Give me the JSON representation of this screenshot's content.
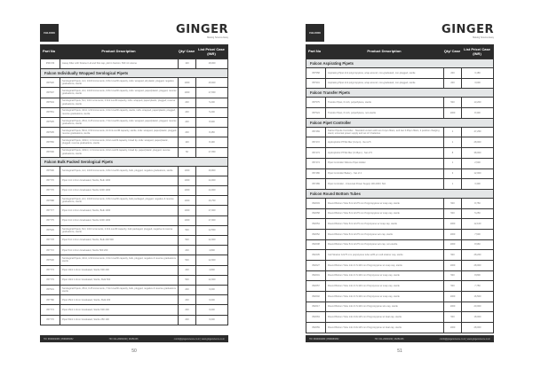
{
  "brand": {
    "logo": "FALCON",
    "name": "GINGER",
    "tagline": "Making Science Easy"
  },
  "headers": {
    "part": "Part No",
    "desc": "Product Description",
    "qty": "Qty/ Case",
    "price": "List Price/ Case (INR)"
  },
  "footer": {
    "phone": "HO: 9820002080 | 9599083052",
    "office": "HO: 011-26260190 | 26251036",
    "web": "ci.info@gingerscience.co.in | www.gingerscience.co.in"
  },
  "pages": [
    {
      "number": "50",
      "rows": [
        {
          "p": "3563 83",
          "d": "Assay Filter with Strainer Lid and Slot cap, pkd in fraction, 500 ml volume",
          "q": "100",
          "v": "18,000"
        },
        {
          "section": "Falcon Individually Wrapped Serological Pipets"
        },
        {
          "p": "357520",
          "d": "Serological Pipets, 1ml, 1/100 increments, 0.8ml overfill capacity, indiv. wrapped, all plastic, plugged, negative graduations, sterile",
          "q": "1000",
          "v": "15,600"
        },
        {
          "p": "357507",
          "d": "Serological Pipets, 2ml, 1/100 increments, 0.8ml overfill capacity, indiv. wrapped, paper/plastic, plugged, reverse graduations, sterile",
          "q": "1000",
          "v": "17,650"
        },
        {
          "p": "357543",
          "d": "Serological Pipets, 5ml, 1/10 increments, 2.0ml overfill capacity, indiv. wrapped, paper/plastic, plugged, reverse graduations, sterile",
          "q": "200",
          "v": "5,200"
        },
        {
          "p": "357551",
          "d": "Serological Pipets, 10ml, 1/10 increments, 3.0ml overfill capacity, sterile, indiv. wrapped, paper/plastic, plugged, reverse graduations, sterile",
          "q": "200",
          "v": "5,200"
        },
        {
          "p": "357525",
          "d": "Serological Pipets, 25ml, 0.25 increments, 7.0ml overfill capacity, indiv. wrapped, paper/plastic, plugged, reverse graduations, sterile",
          "q": "200",
          "v": "8,900"
        },
        {
          "p": "357535",
          "d": "Serological Pipets, 50ml, 0.50 increments, 10.0ml overfill capacity, sterile, indiv. wrapped, paper/plastic, plugged, reverse graduations, sterile",
          "q": "200",
          "v": "8,450"
        },
        {
          "p": "357550",
          "d": "Serological Pipets, 100ml, 1.0 increments, 10ml overfill capacity, broad tip, indiv. wrapped, paper/plastic, plugged, reverse graduations, sterile",
          "q": "100",
          "v": "8,490"
        },
        {
          "p": "357600",
          "d": "Serological Pipets, 100ml, 1.0 increments, 10ml overfill capacity, broad tip, paper/plastic, plugged, reverse graduations, sterile",
          "q": "50",
          "v": "17,050"
        },
        {
          "section": "Falcon Bulk Packed Serological Pipets"
        },
        {
          "p": "357596",
          "d": "Serological Pipets, 1ml, 1/100 increments, 0.8ml overfill capacity, bulk, plugged, negative graduations, sterile",
          "q": "1000",
          "v": "16,800"
        },
        {
          "p": "357776",
          "d": "Pipet 1ml 1.0mm Graduated, Sterile, Bulk 1000",
          "q": "1000",
          "v": "14,000"
        },
        {
          "p": "357776",
          "d": "Pipet 1ml 1.0mm Graduated, Sterile 1000 1000",
          "q": "1000",
          "v": "14,000"
        },
        {
          "p": "357588",
          "d": "Serological Pipets, 2ml, 1/100 increments, 0.8ml overfill capacity, bulk packaged, plugged, negative & reverse graduations, sterile",
          "q": "1000",
          "v": "16,750"
        },
        {
          "p": "357777",
          "d": "Pipet 2ml 1.0mm Graduated, Sterile, Bulk 1000",
          "q": "1000",
          "v": "17,000"
        },
        {
          "p": "357775",
          "d": "Pipet 2ml 1.0mm Graduated, Sterile 1000 1000",
          "q": "1000",
          "v": "17,000"
        },
        {
          "p": "357529",
          "d": "Serological Pipets, 5ml, 1/10 increments, 2.0ml overfill capacity, bulk packaged, plugged, negative & reverse graduations, sterile",
          "q": "500",
          "v": "12,550"
        },
        {
          "p": "357778",
          "d": "Pipet 5ml 1.0mm Graduated, Sterile, Bulk 200 500",
          "q": "500",
          "v": "12,000"
        },
        {
          "p": "357772",
          "d": "Pipet 5ml 1.0mm Graduated, Sterile 500 200",
          "q": "200",
          "v": "4,800"
        },
        {
          "p": "357530",
          "d": "Serological Pipets, 10ml, 1/10 increments, 3.0ml overfill capacity, bulk, plugged, negative & reverse graduations, sterile",
          "q": "500",
          "v": "12,000"
        },
        {
          "p": "357773",
          "d": "Pipet 10ml 1.0mm Graduated, Sterile 500 200",
          "q": "200",
          "v": "4,800"
        },
        {
          "p": "357779",
          "d": "Pipet 10ml 1.0mm Graduated, Sterile, Bulk 500",
          "q": "500",
          "v": "12,000"
        },
        {
          "p": "357531",
          "d": "Serological Pipets, 25ml, 0.25 increments, 7.0ml overfill capacity, bulk, plugged, negative & reverse graduations, sterile",
          "q": "200",
          "v": "9,000"
        },
        {
          "p": "357780",
          "d": "Pipet 25ml 1.0mm Graduated, Sterile, Bulk 200",
          "q": "200",
          "v": "9,000"
        },
        {
          "p": "357774",
          "d": "Pipet 25ml 1.0mm Graduated, Sterile 500 200",
          "q": "200",
          "v": "9,000"
        },
        {
          "p": "357776",
          "d": "Pipet 50ml 1.0mm Graduated, Sterile 250 100",
          "q": "200",
          "v": "9,000"
        }
      ]
    },
    {
      "number": "51",
      "rows": [
        {
          "section": "Falcon Aspirating Pipets"
        },
        {
          "p": "357558",
          "d": "Aspirating Pipet 2ml polypropylene, wrap-around, non-graduated, non-plugged, sterile",
          "q": "200",
          "v": "3,180"
        },
        {
          "p": "357901",
          "d": "Aspirating Pipet 2ml polypropylene, wrap-around, non-graduated, non-plugged, sterile",
          "q": "200",
          "v": "3,600"
        },
        {
          "section": "Falcon Transfer Pipets"
        },
        {
          "p": "357575",
          "d": "Transfer Pipet, 6 inch, polyethylene, sterile",
          "q": "500",
          "v": "13,200"
        },
        {
          "p": "357524",
          "d": "Transfer Pipet, 6 inch, polyethylene, non-sterile",
          "q": "1000",
          "v": "8,300"
        },
        {
          "section": "Falcon Pipet Controller"
        },
        {
          "p": "357469",
          "d": "Falcon Pipette Controller - Standard version with two 0.2µm filters, and two 0.45µm filters, 2 position charging stand, universal power supply and set of 4 batteries",
          "q": "1",
          "v": "47,250"
        },
        {
          "p": "357472",
          "d": "Hydrophobic PTFE filter (0.2µm) - Set of 5",
          "q": "1",
          "v": "28,000"
        },
        {
          "p": "357473",
          "d": "Hydrophobic PTFE filter (0.45µm) - Set of 5",
          "q": "8",
          "v": "38,000"
        },
        {
          "p": "357474",
          "d": "Pipet Controller Silicone Pipet Holder",
          "q": "1",
          "v": "2,500"
        },
        {
          "p": "357486",
          "d": "Pipet Controller Battery - Set of 4",
          "q": "3",
          "v": "12,000"
        },
        {
          "p": "357489",
          "d": "Pipet Controller - Universal Power Supply 100-230V, Std.",
          "q": "1",
          "v": "3,300"
        },
        {
          "section": "Falcon Round Bottom Tubes"
        },
        {
          "p": "352003",
          "d": "Round Bottom Tube 5ml 12x75 mm Polypropylene w/ snap cap, sterile",
          "q": "500",
          "v": "8,750"
        },
        {
          "p": "352058",
          "d": "Round Bottom Tube 5ml 12x75 mm Polypropylene w/ snap cap, sterile",
          "q": "500",
          "v": "5,250"
        },
        {
          "p": "352054",
          "d": "Round Bottom Tube 5ml 12x75 mm Polystyrene w/ snap cap, sterile",
          "q": "1000",
          "v": "12,100"
        },
        {
          "p": "352052",
          "d": "Round Bottom Tube 5ml 12x75 mm Polystyrene w/o cap, sterile",
          "q": "1000",
          "v": "7,500"
        },
        {
          "p": "352008",
          "d": "Round Bottom Tube 5ml 12x75 mm Polystyrene w/o cap, non-sterile",
          "q": "1000",
          "v": "8,960"
        },
        {
          "p": "352235",
          "d": "Cell Strainer 12x75 mm polystyrene tube w/35 µm cell strainer cap, sterile",
          "q": "500",
          "v": "28,260"
        },
        {
          "p": "352027",
          "d": "Round Bottom Tube 14ml 17x100 mm Polypropylene w/ snap cap, sterile",
          "q": "1000",
          "v": "28,000"
        },
        {
          "p": "352001",
          "d": "Round Bottom Tube 14ml 17x100 mm Polystyrene w/ snap cap, sterile",
          "q": "500",
          "v": "8,800"
        },
        {
          "p": "352057",
          "d": "Round Bottom Tube 14ml 17x100 mm Polystyrene w/ snap cap, sterile",
          "q": "500",
          "v": "7,750"
        },
        {
          "p": "352002",
          "d": "Round Bottom Tube 14ml 17x100 mm Polystyrene w/ snap cap, sterile",
          "q": "1000",
          "v": "16,500"
        },
        {
          "p": "352017",
          "d": "Round Bottom Tube 14ml 17x100 mm Polypropylene w/o cap, sterile",
          "q": "1000",
          "v": "20,000"
        },
        {
          "p": "352063",
          "d": "Round Bottom Tube 14ml 16x125 mm Polypropylene w/ dual cap, sterile",
          "q": "500",
          "v": "18,000"
        },
        {
          "p": "352059",
          "d": "Round Bottom Tube 14ml 16x125 mm Polypropylene w/ dual cap, sterile",
          "q": "1000",
          "v": "28,000"
        }
      ]
    }
  ]
}
